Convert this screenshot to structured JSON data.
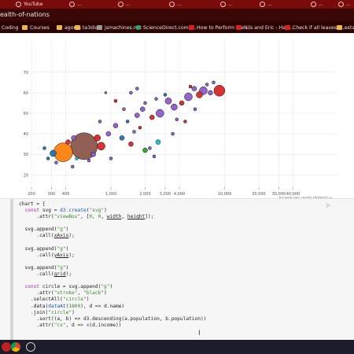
{
  "browser": {
    "tabs": [
      {
        "label": "YouTube"
      },
      {
        "label": "..."
      },
      {
        "label": "..."
      },
      {
        "label": "..."
      },
      {
        "label": "..."
      },
      {
        "label": "..."
      },
      {
        "label": "..."
      },
      {
        "label": "..."
      }
    ],
    "url_fragment": "ealth-of-nations",
    "bookmarks": [
      {
        "label": "Coding",
        "icon": "folder-icon"
      },
      {
        "label": "Courses",
        "icon": "folder-icon"
      },
      {
        "label": "agores",
        "icon": "folder-icon"
      },
      {
        "label": "ta3dia",
        "icon": "folder-icon"
      },
      {
        "label": "jsmachines.net",
        "icon": "page-icon"
      },
      {
        "label": "ScienceDirect.com |...",
        "icon": "sciencedirect-icon"
      },
      {
        "label": "How to Perform the...",
        "icon": "youtube-icon"
      },
      {
        "label": "Nils and Eric - Hap...",
        "icon": "youtube-icon"
      },
      {
        "label": "Check if all leaves a...",
        "icon": "youtube-icon"
      },
      {
        "label": "estar",
        "icon": "folder-icon"
      }
    ]
  },
  "chart_data": {
    "type": "scatter",
    "x_axis": {
      "scale": "log",
      "domain": [
        200,
        100000
      ],
      "ticks": [
        {
          "value": 200,
          "label": "200"
        },
        {
          "value": 300,
          "label": "300"
        },
        {
          "value": 400,
          "label": "400"
        },
        {
          "value": 1000,
          "label": "1,000"
        },
        {
          "value": 2000,
          "label": "2,000"
        },
        {
          "value": 3000,
          "label": "3,000"
        },
        {
          "value": 4000,
          "label": "4,000"
        },
        {
          "value": 10000,
          "label": "10,000"
        },
        {
          "value": 20000,
          "label": "20,000"
        },
        {
          "value": 30000,
          "label": "30,000"
        },
        {
          "value": 40000,
          "label": "40,000"
        }
      ],
      "label": "Income per capita (dollars) →"
    },
    "y_axis": {
      "domain": [
        14,
        86
      ],
      "ticks": [
        {
          "value": 20,
          "label": "20"
        },
        {
          "value": 30,
          "label": "30"
        },
        {
          "value": 40,
          "label": "40"
        },
        {
          "value": 50,
          "label": "50"
        },
        {
          "value": 60,
          "label": "60"
        },
        {
          "value": 70,
          "label": "70"
        }
      ]
    },
    "grid": true,
    "colors": {
      "purple": "#8e5bc8",
      "red": "#d62728",
      "orange": "#ff7f0e",
      "brown": "#8c564b",
      "blue": "#1f77b4",
      "green": "#2ca02c",
      "teal": "#17becf"
    },
    "points": [
      {
        "x": 380,
        "y": 31,
        "r": 12,
        "c": "orange"
      },
      {
        "x": 580,
        "y": 34,
        "r": 17,
        "c": "brown"
      },
      {
        "x": 310,
        "y": 30.5,
        "r": 4,
        "c": "blue"
      },
      {
        "x": 260,
        "y": 33,
        "r": 2,
        "c": "blue"
      },
      {
        "x": 420,
        "y": 36,
        "r": 3,
        "c": "red"
      },
      {
        "x": 470,
        "y": 38,
        "r": 3,
        "c": "purple"
      },
      {
        "x": 760,
        "y": 38,
        "r": 4,
        "c": "red"
      },
      {
        "x": 820,
        "y": 34,
        "r": 5,
        "c": "red"
      },
      {
        "x": 700,
        "y": 30,
        "r": 3,
        "c": "purple"
      },
      {
        "x": 500,
        "y": 28,
        "r": 2,
        "c": "teal"
      },
      {
        "x": 640,
        "y": 27,
        "r": 2,
        "c": "purple"
      },
      {
        "x": 280,
        "y": 28,
        "r": 2,
        "c": "blue"
      },
      {
        "x": 330,
        "y": 26,
        "r": 2,
        "c": "purple"
      },
      {
        "x": 460,
        "y": 24,
        "r": 2,
        "c": "purple"
      },
      {
        "x": 950,
        "y": 40,
        "r": 3,
        "c": "purple"
      },
      {
        "x": 1100,
        "y": 44,
        "r": 3,
        "c": "purple"
      },
      {
        "x": 1250,
        "y": 38,
        "r": 3,
        "c": "blue"
      },
      {
        "x": 1500,
        "y": 35,
        "r": 3,
        "c": "red"
      },
      {
        "x": 1600,
        "y": 41,
        "r": 2,
        "c": "purple"
      },
      {
        "x": 1800,
        "y": 43,
        "r": 2,
        "c": "red"
      },
      {
        "x": 2000,
        "y": 32,
        "r": 3,
        "c": "green"
      },
      {
        "x": 2200,
        "y": 33,
        "r": 2,
        "c": "purple"
      },
      {
        "x": 2400,
        "y": 29,
        "r": 2,
        "c": "purple"
      },
      {
        "x": 2600,
        "y": 36,
        "r": 3,
        "c": "teal"
      },
      {
        "x": 1400,
        "y": 46,
        "r": 2,
        "c": "blue"
      },
      {
        "x": 1700,
        "y": 49,
        "r": 3,
        "c": "purple"
      },
      {
        "x": 1900,
        "y": 52,
        "r": 3,
        "c": "purple"
      },
      {
        "x": 2300,
        "y": 48,
        "r": 3,
        "c": "red"
      },
      {
        "x": 2700,
        "y": 50,
        "r": 5,
        "c": "purple"
      },
      {
        "x": 3200,
        "y": 56,
        "r": 4,
        "c": "purple"
      },
      {
        "x": 3600,
        "y": 53,
        "r": 4,
        "c": "purple"
      },
      {
        "x": 4200,
        "y": 55,
        "r": 3,
        "c": "red"
      },
      {
        "x": 4800,
        "y": 58,
        "r": 5,
        "c": "purple"
      },
      {
        "x": 5400,
        "y": 62,
        "r": 3,
        "c": "purple"
      },
      {
        "x": 6000,
        "y": 59,
        "r": 4,
        "c": "red"
      },
      {
        "x": 6500,
        "y": 61,
        "r": 5,
        "c": "purple"
      },
      {
        "x": 7500,
        "y": 60,
        "r": 3,
        "c": "purple"
      },
      {
        "x": 9000,
        "y": 61,
        "r": 7,
        "c": "red"
      },
      {
        "x": 8000,
        "y": 65,
        "r": 2,
        "c": "purple"
      },
      {
        "x": 5000,
        "y": 63,
        "r": 2,
        "c": "red"
      },
      {
        "x": 3000,
        "y": 59,
        "r": 2,
        "c": "blue"
      },
      {
        "x": 2500,
        "y": 57,
        "r": 2,
        "c": "purple"
      },
      {
        "x": 2000,
        "y": 55,
        "r": 2,
        "c": "purple"
      },
      {
        "x": 1300,
        "y": 52,
        "r": 2,
        "c": "purple"
      },
      {
        "x": 1100,
        "y": 56,
        "r": 2,
        "c": "red"
      },
      {
        "x": 1500,
        "y": 60,
        "r": 2,
        "c": "purple"
      },
      {
        "x": 1700,
        "y": 62,
        "r": 2,
        "c": "purple"
      },
      {
        "x": 3800,
        "y": 47,
        "r": 2,
        "c": "purple"
      },
      {
        "x": 900,
        "y": 60,
        "r": 1.5,
        "c": "purple"
      },
      {
        "x": 800,
        "y": 46,
        "r": 2,
        "c": "purple"
      },
      {
        "x": 1000,
        "y": 28,
        "r": 2,
        "c": "purple"
      },
      {
        "x": 3500,
        "y": 40,
        "r": 2,
        "c": "purple"
      },
      {
        "x": 5500,
        "y": 52,
        "r": 2,
        "c": "purple"
      },
      {
        "x": 4500,
        "y": 46,
        "r": 2,
        "c": "red"
      },
      {
        "x": 7000,
        "y": 64,
        "r": 2,
        "c": "purple"
      }
    ]
  },
  "notebook": {
    "run_label": "▷",
    "code_lines": [
      [
        [
          "t",
          "chart = {"
        ]
      ],
      [
        [
          "t",
          "  "
        ],
        [
          "kw",
          "const"
        ],
        [
          "t",
          " svg = "
        ],
        [
          "fn",
          "d3.create"
        ],
        [
          "t",
          "("
        ],
        [
          "str",
          "\"svg\""
        ],
        [
          "t",
          ")"
        ]
      ],
      [
        [
          "t",
          "      .attr("
        ],
        [
          "str",
          "\"viewBox\""
        ],
        [
          "t",
          ", ["
        ],
        [
          "num",
          "0"
        ],
        [
          "t",
          ", "
        ],
        [
          "num",
          "0"
        ],
        [
          "t",
          ", "
        ],
        [
          "und",
          "width"
        ],
        [
          "t",
          ", "
        ],
        [
          "und",
          "height"
        ],
        [
          "t",
          "]);"
        ]
      ],
      [
        [
          "t",
          ""
        ]
      ],
      [
        [
          "t",
          "  svg.append("
        ],
        [
          "str",
          "\"g\""
        ],
        [
          "t",
          ")"
        ]
      ],
      [
        [
          "t",
          "      .call("
        ],
        [
          "und",
          "xAxis"
        ],
        [
          "t",
          ");"
        ]
      ],
      [
        [
          "t",
          ""
        ]
      ],
      [
        [
          "t",
          "  svg.append("
        ],
        [
          "str",
          "\"g\""
        ],
        [
          "t",
          ")"
        ]
      ],
      [
        [
          "t",
          "      .call("
        ],
        [
          "und",
          "yAxis"
        ],
        [
          "t",
          ");"
        ]
      ],
      [
        [
          "t",
          ""
        ]
      ],
      [
        [
          "t",
          "  svg.append("
        ],
        [
          "str",
          "\"g\""
        ],
        [
          "t",
          ")"
        ]
      ],
      [
        [
          "t",
          "      .call("
        ],
        [
          "und",
          "grid"
        ],
        [
          "t",
          ");"
        ]
      ],
      [
        [
          "t",
          ""
        ]
      ],
      [
        [
          "t",
          "  "
        ],
        [
          "kw",
          "const"
        ],
        [
          "t",
          " circle = svg.append("
        ],
        [
          "str",
          "\"g\""
        ],
        [
          "t",
          ")"
        ]
      ],
      [
        [
          "t",
          "      .attr("
        ],
        [
          "str",
          "\"stroke\""
        ],
        [
          "t",
          ", "
        ],
        [
          "str",
          "\"black\""
        ],
        [
          "t",
          ")"
        ]
      ],
      [
        [
          "t",
          "    .selectAll("
        ],
        [
          "str",
          "\"circle\""
        ],
        [
          "t",
          ")"
        ]
      ],
      [
        [
          "t",
          "    .data("
        ],
        [
          "fn",
          "dataAt"
        ],
        [
          "t",
          "("
        ],
        [
          "num",
          "1800"
        ],
        [
          "t",
          "), d => d.name)"
        ]
      ],
      [
        [
          "t",
          "    .join("
        ],
        [
          "str",
          "\"circle\""
        ],
        [
          "t",
          ")"
        ]
      ],
      [
        [
          "t",
          "      .sort((a, b) => d3.descending(a.population, b.population))"
        ]
      ],
      [
        [
          "t",
          "      .attr("
        ],
        [
          "str",
          "\"cx\""
        ],
        [
          "t",
          ", d => "
        ],
        [
          "fn",
          "x"
        ],
        [
          "t",
          "(d.income))"
        ]
      ]
    ]
  }
}
